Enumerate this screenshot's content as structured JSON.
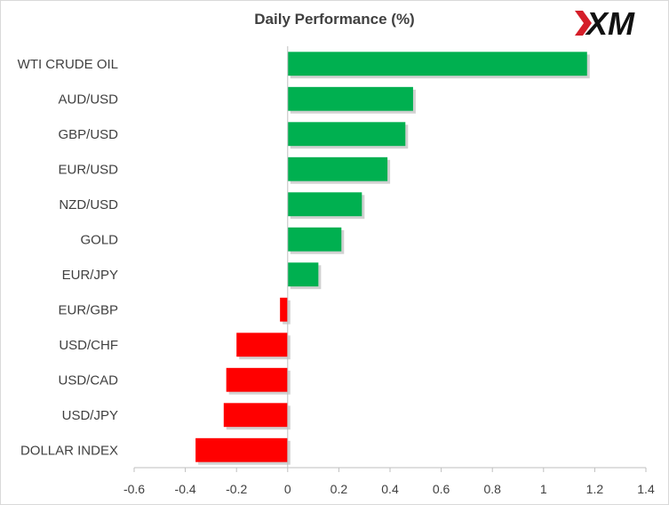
{
  "brand": {
    "logo_text": "XM"
  },
  "colors": {
    "positive": "#00b050",
    "negative": "#ff0000",
    "axis": "#bfbfbf",
    "text": "#404040"
  },
  "chart_data": {
    "type": "bar",
    "orientation": "horizontal",
    "title": "Daily Performance (%)",
    "categories": [
      "WTI CRUDE OIL",
      "AUD/USD",
      "GBP/USD",
      "EUR/USD",
      "NZD/USD",
      "GOLD",
      "EUR/JPY",
      "EUR/GBP",
      "USD/CHF",
      "USD/CAD",
      "USD/JPY",
      "DOLLAR INDEX"
    ],
    "values": [
      1.17,
      0.49,
      0.46,
      0.39,
      0.29,
      0.21,
      0.12,
      -0.03,
      -0.2,
      -0.24,
      -0.25,
      -0.36
    ],
    "xlim": [
      -0.6,
      1.4
    ],
    "x_ticks": [
      -0.6,
      -0.4,
      -0.2,
      0,
      0.2,
      0.4,
      0.6,
      0.8,
      1,
      1.2,
      1.4
    ],
    "x_tick_labels": [
      "-0.6",
      "-0.4",
      "-0.2",
      "0",
      "0.2",
      "0.4",
      "0.6",
      "0.8",
      "1",
      "1.2",
      "1.4"
    ],
    "grid": false,
    "legend": "none"
  }
}
